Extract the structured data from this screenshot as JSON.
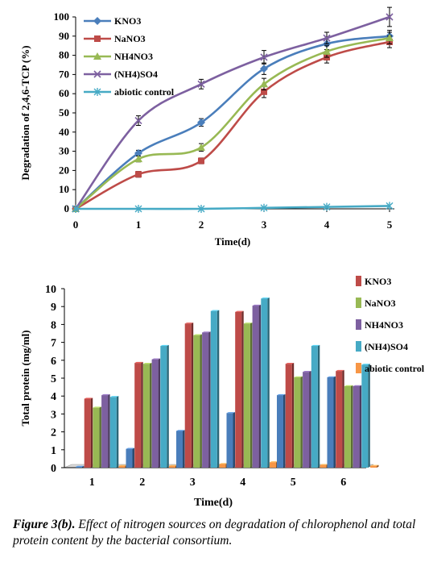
{
  "colors": {
    "kno3": "#4A7EBB",
    "nano3": "#BE4B48",
    "nh4no3": "#98B954",
    "nh42so4": "#7D60A0",
    "abiotic": "#46AAC5",
    "bar_abiotic": "#F79646",
    "axis": "#000000",
    "floor": "#D9D9D9"
  },
  "chart_data": [
    {
      "type": "line",
      "title": "",
      "xlabel": "Time(d)",
      "ylabel": "Degradation of  2,4,6-TCP (%)",
      "x": [
        0,
        1,
        2,
        3,
        4,
        5
      ],
      "x_ticks": [
        "0",
        "1",
        "2",
        "3",
        "4",
        "5"
      ],
      "y_ticks": [
        "0",
        "10",
        "20",
        "30",
        "40",
        "50",
        "60",
        "70",
        "80",
        "90",
        "100"
      ],
      "xlim": [
        0,
        5
      ],
      "ylim": [
        0,
        100
      ],
      "grid": false,
      "legend_position": "top-left",
      "error_bars": true,
      "series": [
        {
          "name": "KNO3",
          "color_key": "kno3",
          "marker": "diamond",
          "values": [
            0,
            29,
            45,
            73,
            86,
            90
          ],
          "errors": [
            0,
            1.5,
            2,
            3,
            3,
            3
          ]
        },
        {
          "name": "NaNO3",
          "color_key": "nano3",
          "marker": "square",
          "values": [
            0,
            18,
            25,
            61,
            79,
            87
          ],
          "errors": [
            0,
            1.5,
            1.5,
            3,
            3,
            3
          ]
        },
        {
          "name": "NH4NO3",
          "color_key": "nh4no3",
          "marker": "triangle",
          "values": [
            0,
            26,
            32,
            65,
            82,
            89
          ],
          "errors": [
            0,
            1.5,
            2,
            3,
            3,
            3
          ]
        },
        {
          "name": "(NH4)SO4",
          "color_key": "nh42so4",
          "marker": "x",
          "values": [
            0,
            46,
            65,
            79,
            89,
            100
          ],
          "errors": [
            0,
            2.5,
            2.5,
            3.5,
            3,
            5
          ]
        },
        {
          "name": "abiotic control",
          "color_key": "abiotic",
          "marker": "star",
          "values": [
            0,
            0,
            0,
            0.5,
            1,
            1.5
          ],
          "errors": [
            0,
            0,
            0,
            0,
            0,
            0
          ]
        }
      ]
    },
    {
      "type": "bar",
      "title": "",
      "xlabel": "Time(d)",
      "ylabel": "Total protein (mg/ml)",
      "categories": [
        "1",
        "2",
        "3",
        "4",
        "5",
        "6"
      ],
      "y_ticks": [
        "0",
        "1",
        "2",
        "3",
        "4",
        "5",
        "6",
        "7",
        "8",
        "9",
        "10"
      ],
      "ylim": [
        0,
        10
      ],
      "grid": false,
      "legend_position": "right",
      "style": "3d-clustered",
      "series": [
        {
          "name": "",
          "color_key": "kno3",
          "values": [
            0.05,
            1.05,
            2.05,
            3.05,
            4.05,
            5.05
          ]
        },
        {
          "name": "KNO3",
          "color_key": "nano3",
          "values": [
            3.85,
            5.85,
            8.05,
            8.7,
            5.8,
            5.4
          ]
        },
        {
          "name": "NaNO3",
          "color_key": "nh4no3",
          "values": [
            3.35,
            5.8,
            7.4,
            8.05,
            5.05,
            4.55
          ]
        },
        {
          "name": "NH4NO3",
          "color_key": "nh42so4",
          "values": [
            4.05,
            6.05,
            7.55,
            9.05,
            5.35,
            4.55
          ]
        },
        {
          "name": "(NH4)SO4",
          "color_key": "abiotic",
          "values": [
            3.95,
            6.8,
            8.75,
            9.45,
            6.8,
            5.75
          ]
        },
        {
          "name": "abiotic control",
          "color_key": "bar_abiotic",
          "values": [
            0.1,
            0.1,
            0.2,
            0.3,
            0.15,
            0.1
          ]
        }
      ]
    }
  ],
  "caption": {
    "label": "Figure 3(b).",
    "text": " Effect of nitrogen sources on degradation of chlorophenol and total protein content by the bacterial consortium."
  }
}
